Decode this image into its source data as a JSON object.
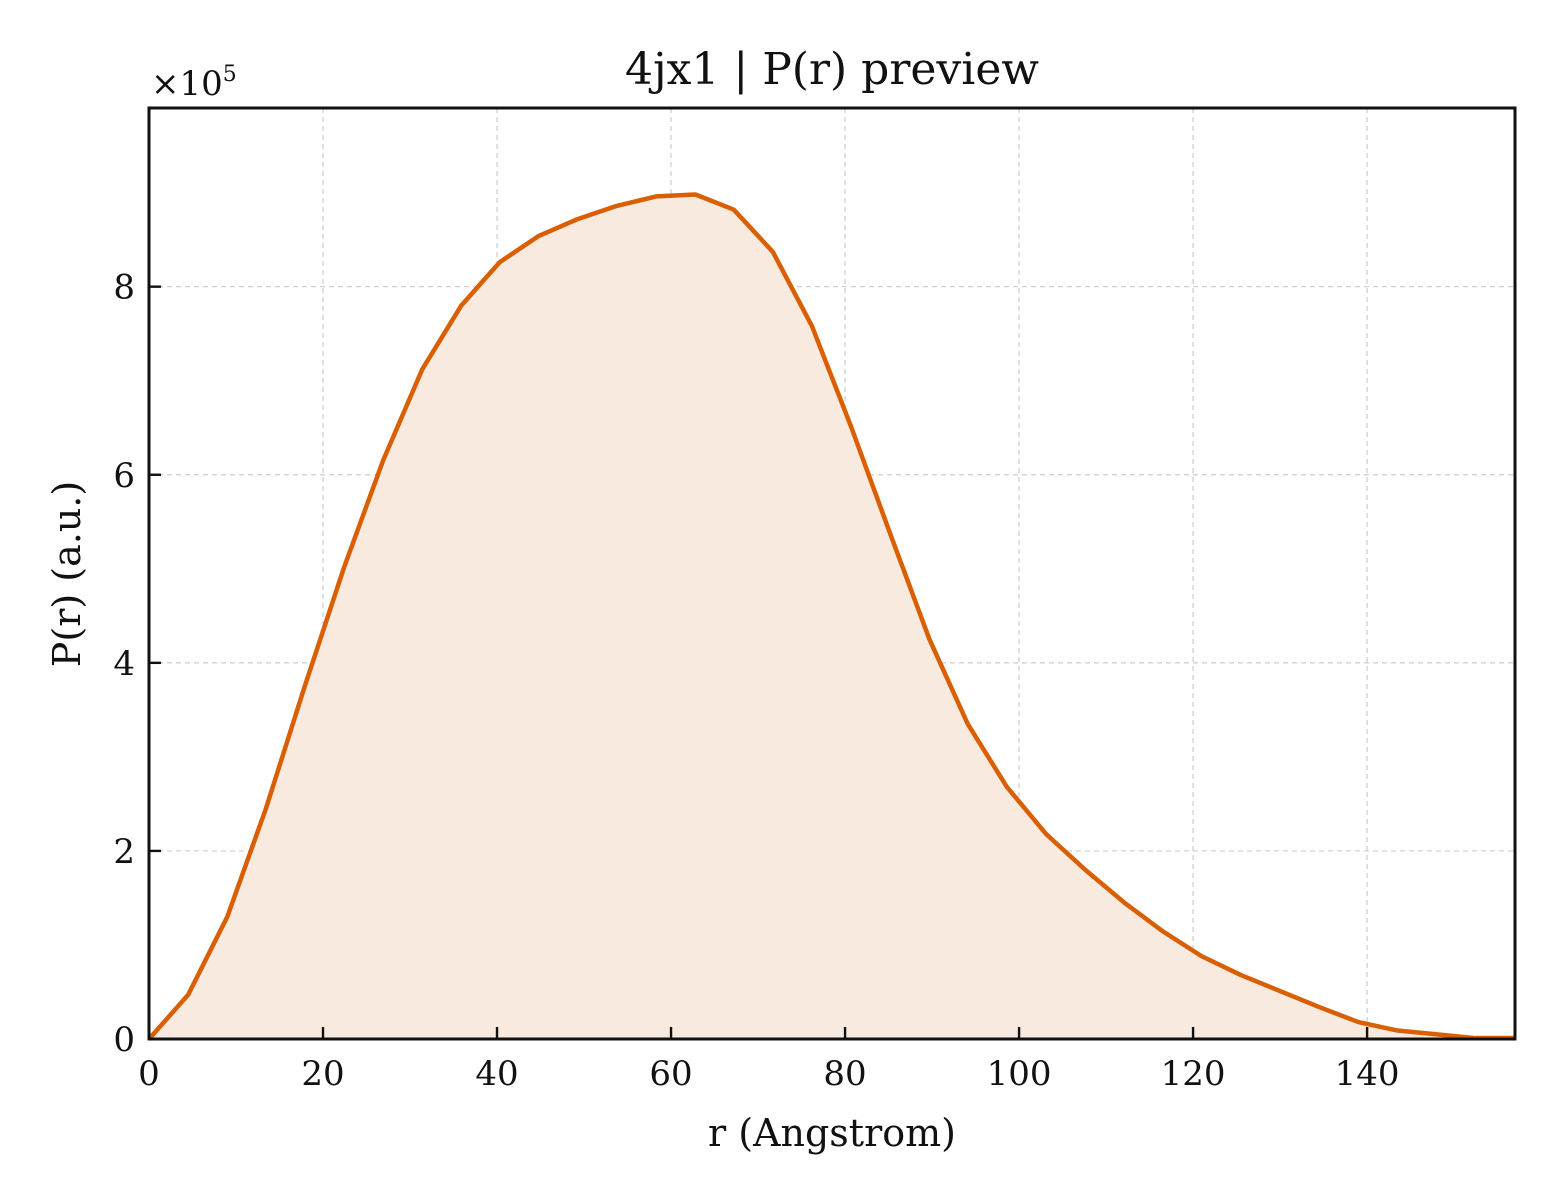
{
  "chart_data": {
    "type": "area",
    "title": "4jx1 | P(r) preview",
    "xlabel": "r (Angstrom)",
    "ylabel": "P(r) (a.u.)",
    "y_multiplier": {
      "base": "×10",
      "exponent": "5"
    },
    "xlim": [
      0,
      157
    ],
    "ylim": [
      0,
      9.9
    ],
    "xticks": [
      0,
      20,
      40,
      60,
      80,
      100,
      120,
      140
    ],
    "yticks": [
      0,
      2,
      4,
      6,
      8
    ],
    "grid": true,
    "line_color": "#d95f02",
    "fill_color": "#f9eadf",
    "series": [
      {
        "x": [
          0,
          4.5,
          9.0,
          13.4,
          17.9,
          22.4,
          26.9,
          31.4,
          35.9,
          40.3,
          44.8,
          49.3,
          53.8,
          58.3,
          62.8,
          67.2,
          71.7,
          76.2,
          80.7,
          85.2,
          89.7,
          94.1,
          98.6,
          103.1,
          107.6,
          112.1,
          116.6,
          121.0,
          125.5,
          130.0,
          134.5,
          139.0,
          143.5,
          147.9,
          152.4,
          156.9
        ],
        "y": [
          0,
          0.47,
          1.3,
          2.44,
          3.75,
          5.01,
          6.15,
          7.12,
          7.8,
          8.26,
          8.54,
          8.72,
          8.86,
          8.96,
          8.98,
          8.82,
          8.37,
          7.58,
          6.51,
          5.37,
          4.25,
          3.35,
          2.68,
          2.18,
          1.8,
          1.45,
          1.14,
          0.88,
          0.68,
          0.51,
          0.34,
          0.18,
          0.09,
          0.05,
          0.01,
          0.01
        ]
      }
    ]
  }
}
